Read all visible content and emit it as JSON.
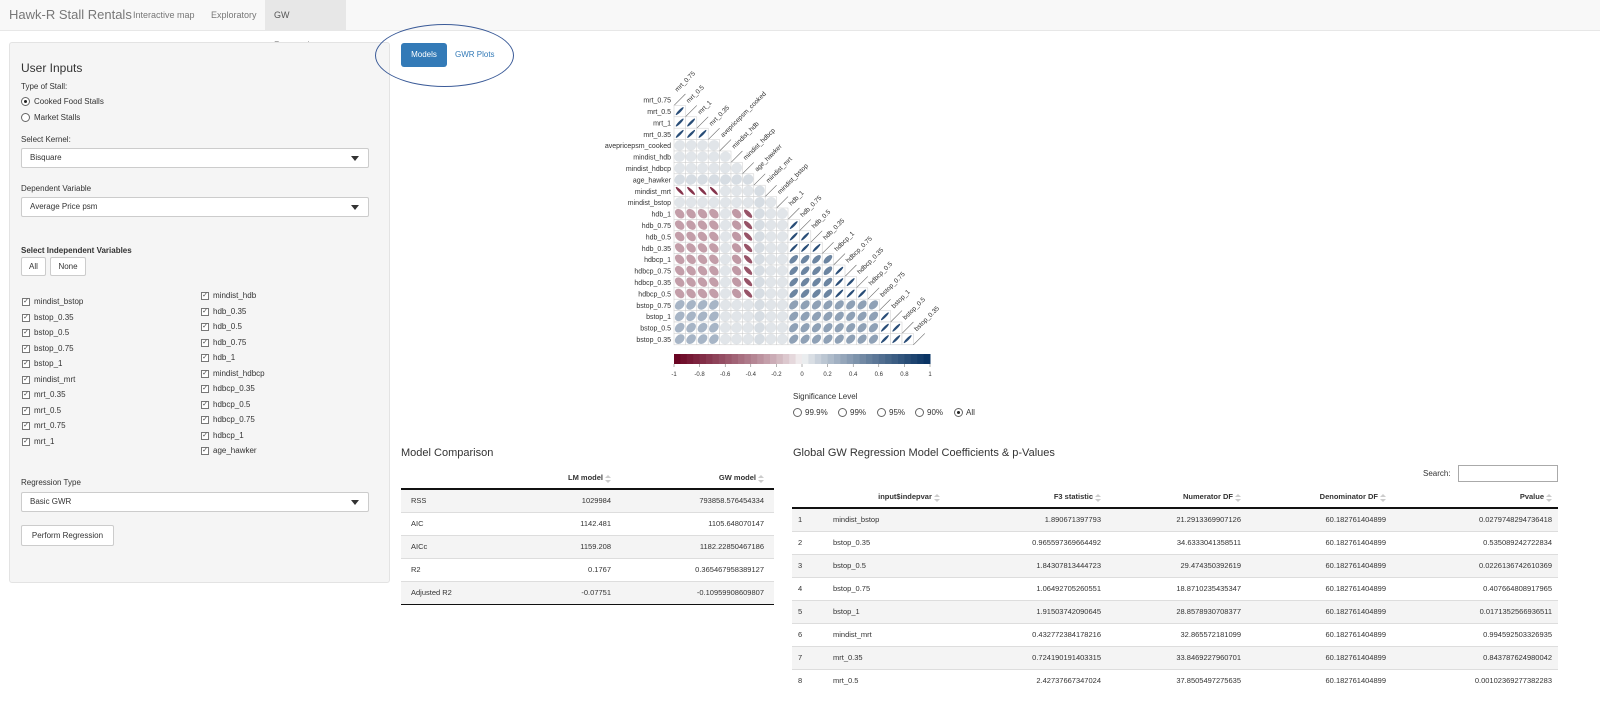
{
  "navbar": {
    "brand": "Hawk-R Stall Rentals",
    "tabs": [
      "Interactive map",
      "Exploratory",
      "GW Regression"
    ],
    "active_tab": "GW Regression"
  },
  "sidebar": {
    "title": "User Inputs",
    "stall_type_label": "Type of Stall:",
    "stall_types": [
      {
        "label": "Cooked Food Stalls",
        "selected": true
      },
      {
        "label": "Market Stalls",
        "selected": false
      }
    ],
    "kernel_label": "Select Kernel:",
    "kernel_value": "Bisquare",
    "dependent_label": "Dependent Variable",
    "dependent_value": "Average Price psm",
    "independent_label": "Select Independent Variables",
    "all_label": "All",
    "none_label": "None",
    "checkboxes_col1": [
      "mindist_bstop",
      "bstop_0.35",
      "bstop_0.5",
      "bstop_0.75",
      "bstop_1",
      "mindist_mrt",
      "mrt_0.35",
      "mrt_0.5",
      "mrt_0.75",
      "mrt_1"
    ],
    "checkboxes_col2": [
      "mindist_hdb",
      "hdb_0.35",
      "hdb_0.5",
      "hdb_0.75",
      "hdb_1",
      "mindist_hdbcp",
      "hdbcp_0.35",
      "hdbcp_0.5",
      "hdbcp_0.75",
      "hdbcp_1",
      "age_hawker"
    ],
    "regression_type_label": "Regression Type",
    "regression_type_value": "Basic GWR",
    "perform_label": "Perform Regression"
  },
  "subtabs": {
    "models": "Models",
    "gwr_plots": "GWR Plots"
  },
  "corrplot": {
    "variables": [
      "mrt_0.75",
      "mrt_0.5",
      "mrt_1",
      "mrt_0.35",
      "avepricepsm_cooked",
      "mindist_hdb",
      "mindist_hdbcp",
      "age_hawker",
      "mindist_mrt",
      "mindist_bstop",
      "hdb_1",
      "hdb_0.75",
      "hdb_0.5",
      "hdb_0.35",
      "hdbcp_1",
      "hdbcp_0.75",
      "hdbcp_0.35",
      "hdbcp_0.5",
      "bstop_0.75",
      "bstop_1",
      "bstop_0.5",
      "bstop_0.35"
    ],
    "colorbar_ticks": [
      "-1",
      "-0.8",
      "-0.6",
      "-0.4",
      "-0.2",
      "0",
      "0.2",
      "0.4",
      "0.6",
      "0.8",
      "1"
    ],
    "colors": {
      "negative": "#67001f",
      "zero": "#f7f7f7",
      "positive": "#053061"
    }
  },
  "significance": {
    "label": "Significance Level",
    "options": [
      {
        "label": "99.9%",
        "selected": false
      },
      {
        "label": "99%",
        "selected": false
      },
      {
        "label": "95%",
        "selected": false
      },
      {
        "label": "90%",
        "selected": false
      },
      {
        "label": "All",
        "selected": true
      }
    ]
  },
  "model_comparison": {
    "title": "Model Comparison",
    "columns": [
      "",
      "LM model",
      "GW model"
    ],
    "rows": [
      [
        "RSS",
        "1029984",
        "793858.576454334"
      ],
      [
        "AIC",
        "1142.481",
        "1105.648070147"
      ],
      [
        "AICc",
        "1159.208",
        "1182.22850467186"
      ],
      [
        "R2",
        "0.1767",
        "0.365467958389127"
      ],
      [
        "Adjusted R2",
        "-0.07751",
        "-0.10959908609807"
      ]
    ]
  },
  "gw_coefficients": {
    "title": "Global GW Regression Model Coefficients & p-Values",
    "search_label": "Search:",
    "columns": [
      "",
      "input$indepvar",
      "F3 statistic",
      "Numerator DF",
      "Denominator DF",
      "Pvalue"
    ],
    "rows": [
      [
        "1",
        "mindist_bstop",
        "1.890671397793",
        "21.2913369907126",
        "60.182761404899",
        "0.0279748294736418"
      ],
      [
        "2",
        "bstop_0.35",
        "0.965597369664492",
        "34.6333041358511",
        "60.182761404899",
        "0.535089242722834"
      ],
      [
        "3",
        "bstop_0.5",
        "1.84307813444723",
        "29.474350392619",
        "60.182761404899",
        "0.0226136742610369"
      ],
      [
        "4",
        "bstop_0.75",
        "1.06492705260551",
        "18.8710235435347",
        "60.182761404899",
        "0.407664808917965"
      ],
      [
        "5",
        "bstop_1",
        "1.91503742090645",
        "28.8578930708377",
        "60.182761404899",
        "0.0171352566936511"
      ],
      [
        "6",
        "mindist_mrt",
        "0.432772384178216",
        "32.865572181099",
        "60.182761404899",
        "0.994592503326935"
      ],
      [
        "7",
        "mrt_0.35",
        "0.724190191403315",
        "33.8469227960701",
        "60.182761404899",
        "0.843787624980042"
      ],
      [
        "8",
        "mrt_0.5",
        "2.42737667347024",
        "37.8505497275635",
        "60.182761404899",
        "0.00102369277382283"
      ]
    ]
  }
}
